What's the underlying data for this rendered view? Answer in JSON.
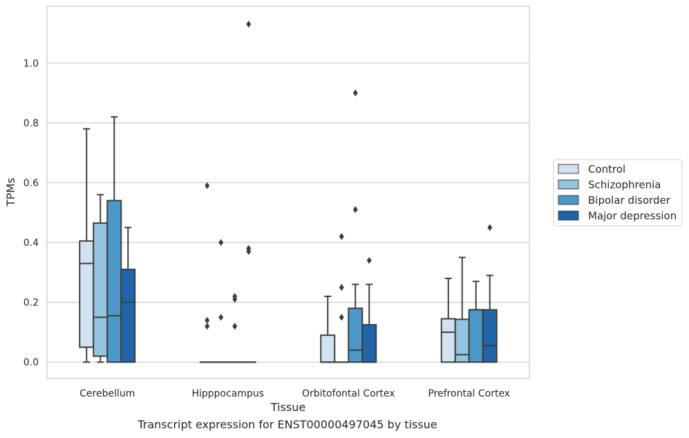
{
  "chart_data": {
    "type": "box",
    "xlabel": "Tissue",
    "ylabel": "TPMs",
    "ylim": [
      -0.055,
      1.19
    ],
    "yticks": [
      0.0,
      0.2,
      0.4,
      0.6,
      0.8,
      1.0
    ],
    "ytick_labels": [
      "0.0",
      "0.2",
      "0.4",
      "0.6",
      "0.8",
      "1.0"
    ],
    "categories": [
      "Cerebellum",
      "Hipppocampus",
      "Orbitofontal Cortex",
      "Prefrontal Cortex"
    ],
    "grid": "horizontal",
    "legend_position": "right",
    "series": [
      {
        "name": "Control",
        "color": "#d2e2f1",
        "boxes": [
          {
            "whislo": 0.0,
            "q1": 0.05,
            "med": 0.33,
            "q3": 0.405,
            "whishi": 0.78,
            "fliers": []
          },
          {
            "whislo": 0.0,
            "q1": 0.0,
            "med": 0.0,
            "q3": 0.0,
            "whishi": 0.0,
            "fliers": [
              0.59,
              0.14,
              0.12
            ]
          },
          {
            "whislo": 0.0,
            "q1": 0.0,
            "med": 0.0,
            "q3": 0.09,
            "whishi": 0.22,
            "fliers": []
          },
          {
            "whislo": 0.0,
            "q1": 0.0,
            "med": 0.1,
            "q3": 0.145,
            "whishi": 0.28,
            "fliers": []
          }
        ]
      },
      {
        "name": "Schizophrenia",
        "color": "#94c4df",
        "boxes": [
          {
            "whislo": 0.0,
            "q1": 0.02,
            "med": 0.15,
            "q3": 0.465,
            "whishi": 0.56,
            "fliers": []
          },
          {
            "whislo": 0.0,
            "q1": 0.0,
            "med": 0.0,
            "q3": 0.0,
            "whishi": 0.0,
            "fliers": [
              0.4,
              0.15
            ]
          },
          {
            "whislo": 0.0,
            "q1": 0.0,
            "med": 0.0,
            "q3": 0.0,
            "whishi": 0.0,
            "fliers": [
              0.42,
              0.25,
              0.15
            ]
          },
          {
            "whislo": 0.0,
            "q1": 0.0,
            "med": 0.025,
            "q3": 0.143,
            "whishi": 0.35,
            "fliers": []
          }
        ]
      },
      {
        "name": "Bipolar disorder",
        "color": "#4b98c9",
        "boxes": [
          {
            "whislo": 0.0,
            "q1": 0.0,
            "med": 0.155,
            "q3": 0.54,
            "whishi": 0.82,
            "fliers": []
          },
          {
            "whislo": 0.0,
            "q1": 0.0,
            "med": 0.0,
            "q3": 0.0,
            "whishi": 0.0,
            "fliers": [
              0.22,
              0.21,
              0.12
            ]
          },
          {
            "whislo": 0.0,
            "q1": 0.0,
            "med": 0.04,
            "q3": 0.18,
            "whishi": 0.26,
            "fliers": [
              0.9,
              0.51
            ]
          },
          {
            "whislo": 0.0,
            "q1": 0.0,
            "med": 0.175,
            "q3": 0.175,
            "whishi": 0.27,
            "fliers": []
          }
        ]
      },
      {
        "name": "Major depression",
        "color": "#2064aa",
        "boxes": [
          {
            "whislo": 0.0,
            "q1": 0.0,
            "med": 0.2,
            "q3": 0.31,
            "whishi": 0.45,
            "fliers": []
          },
          {
            "whislo": 0.0,
            "q1": 0.0,
            "med": 0.0,
            "q3": 0.0,
            "whishi": 0.0,
            "fliers": [
              1.13,
              0.38,
              0.37
            ]
          },
          {
            "whislo": 0.0,
            "q1": 0.0,
            "med": 0.0,
            "q3": 0.125,
            "whishi": 0.26,
            "fliers": [
              0.34
            ]
          },
          {
            "whislo": 0.0,
            "q1": 0.0,
            "med": 0.055,
            "q3": 0.175,
            "whishi": 0.29,
            "fliers": [
              0.45
            ]
          }
        ]
      }
    ]
  },
  "caption": "Transcript expression for ENST00000497045 by tissue"
}
